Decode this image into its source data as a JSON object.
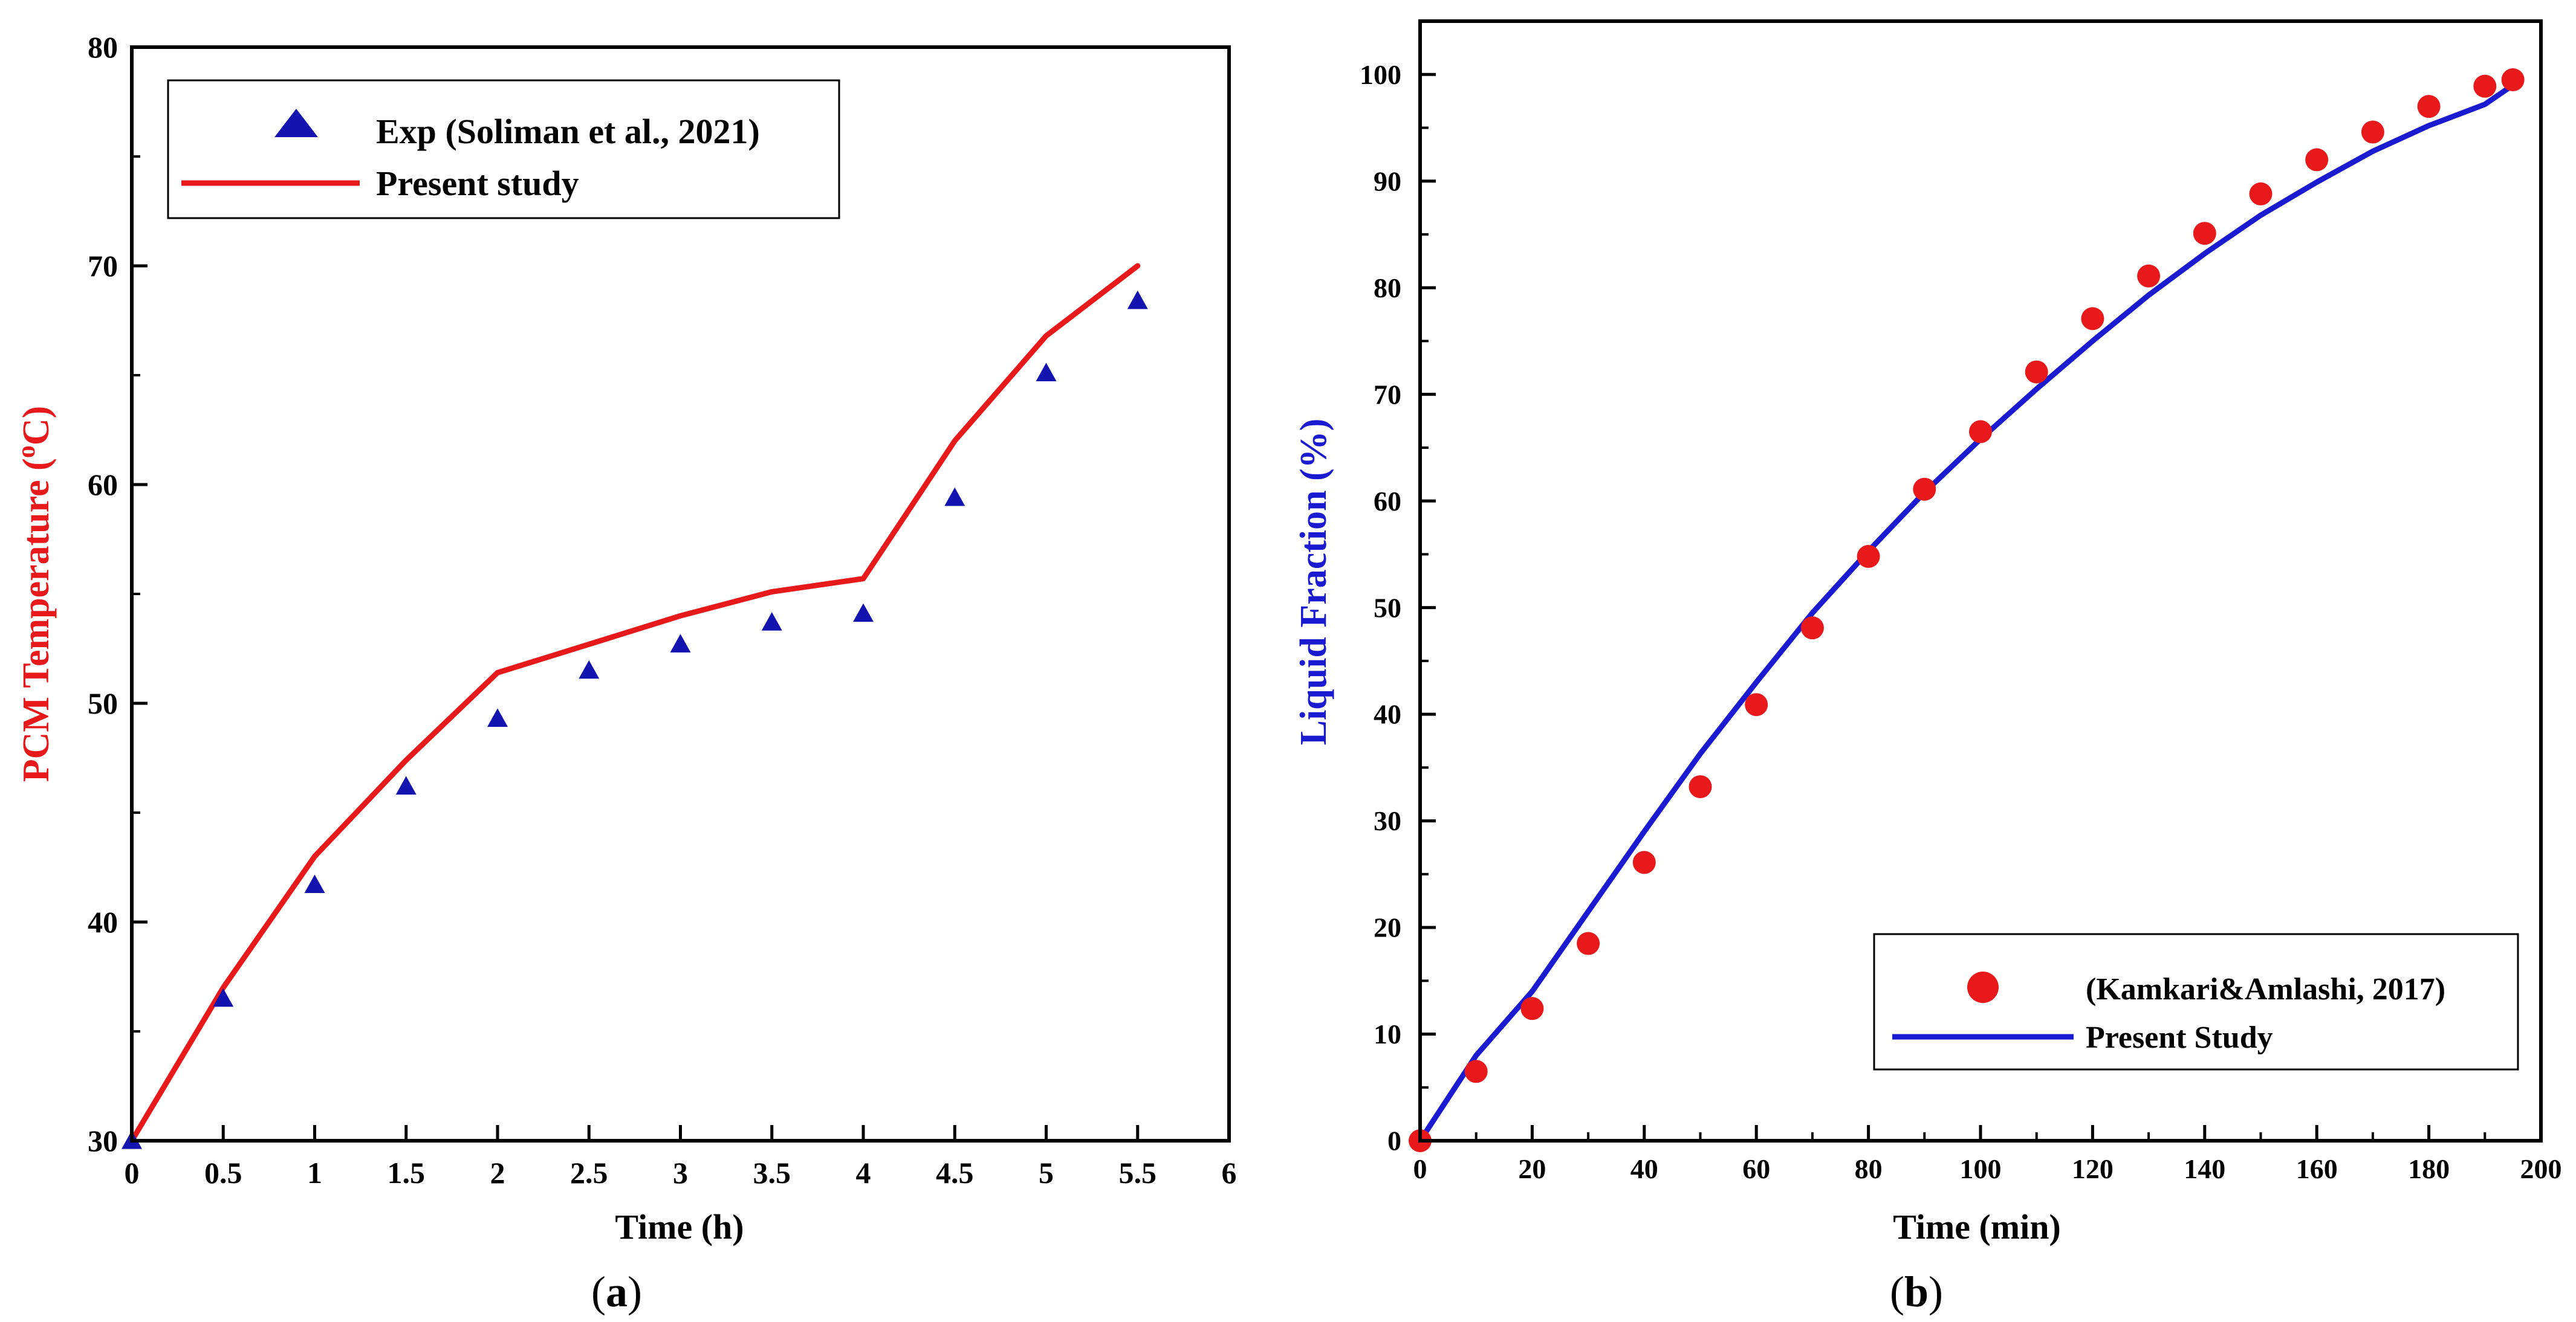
{
  "panels": [
    {
      "label_open": "(",
      "label_letter": "a",
      "label_close": ")",
      "chart_data": {
        "type": "line",
        "title": "",
        "xlabel": "Time (h)",
        "ylabel_main": "PCM Temperature  (",
        "ylabel_sup": "o",
        "ylabel_end": "C)",
        "xlim": [
          0,
          6
        ],
        "ylim": [
          30,
          80
        ],
        "xticks": [
          0,
          0.5,
          1,
          1.5,
          2,
          2.5,
          3,
          3.5,
          4,
          4.5,
          5,
          5.5,
          6
        ],
        "xtick_labels": [
          "0",
          "0.5",
          "1",
          "1.5",
          "2",
          "2.5",
          "3",
          "3.5",
          "4",
          "4.5",
          "5",
          "5.5",
          "6"
        ],
        "yticks": [
          30,
          40,
          50,
          60,
          70,
          80
        ],
        "ytick_labels": [
          "30",
          "40",
          "50",
          "60",
          "70",
          "80"
        ],
        "grid": false,
        "legend_position": "top-left",
        "ylabel_color": "#e8191b",
        "series": [
          {
            "name": "Exp (Soliman et al., 2021)",
            "kind": "scatter",
            "marker": "triangle",
            "color": "#1313b0",
            "x": [
              0,
              0.5,
              1,
              1.5,
              2,
              2.5,
              3,
              3.5,
              4,
              4.5,
              5,
              5.5
            ],
            "y": [
              30,
              36.5,
              41.7,
              46.2,
              49.3,
              51.5,
              52.7,
              53.7,
              54.1,
              59.4,
              65.1,
              68.4
            ]
          },
          {
            "name": "Present study",
            "kind": "line",
            "color": "#e8191b",
            "x": [
              0,
              0.5,
              1,
              1.5,
              2,
              2.5,
              3,
              3.5,
              4,
              4.5,
              5,
              5.5
            ],
            "y": [
              30,
              37,
              43,
              47.4,
              51.4,
              52.7,
              54,
              55.1,
              55.7,
              62,
              66.8,
              70
            ]
          }
        ]
      }
    },
    {
      "label_open": "(",
      "label_letter": "b",
      "label_close": ")",
      "chart_data": {
        "type": "line",
        "title": "",
        "xlabel": "Time (min)",
        "ylabel": "Liquid Fraction (%)",
        "xlim": [
          0,
          200
        ],
        "ylim": [
          0,
          105
        ],
        "xticks": [
          0,
          20,
          40,
          60,
          80,
          100,
          120,
          140,
          160,
          180,
          200
        ],
        "xtick_labels": [
          "0",
          "20",
          "40",
          "60",
          "80",
          "100",
          "120",
          "140",
          "160",
          "180",
          "200"
        ],
        "yticks": [
          0,
          10,
          20,
          30,
          40,
          50,
          60,
          70,
          80,
          90,
          100
        ],
        "ytick_labels": [
          "0",
          "10",
          "20",
          "30",
          "40",
          "50",
          "60",
          "70",
          "80",
          "90",
          "100"
        ],
        "grid": false,
        "legend_position": "bottom-right",
        "ylabel_color": "#1a1ad0",
        "series": [
          {
            "name": "(Kamkari&Amlashi, 2017)",
            "kind": "scatter",
            "marker": "circle",
            "color": "#e8191b",
            "x": [
              0,
              10,
              20,
              30,
              40,
              50,
              60,
              70,
              80,
              90,
              100,
              110,
              120,
              130,
              140,
              150,
              160,
              170,
              180,
              190,
              195
            ],
            "y": [
              0,
              6.5,
              12.4,
              18.5,
              26.1,
              33.2,
              40.9,
              48.1,
              54.8,
              61.1,
              66.5,
              72.1,
              77.1,
              81.1,
              85.1,
              88.8,
              92,
              94.6,
              97,
              98.9,
              99.5
            ]
          },
          {
            "name": "Present Study",
            "kind": "line",
            "color": "#1a1ad0",
            "x": [
              0,
              10,
              20,
              30,
              40,
              50,
              60,
              70,
              80,
              90,
              100,
              110,
              120,
              130,
              140,
              150,
              160,
              170,
              180,
              190,
              195
            ],
            "y": [
              0,
              8,
              14,
              21.5,
              29,
              36.3,
              43,
              49.5,
              55.3,
              60.8,
              65.8,
              70.5,
              75,
              79.3,
              83.2,
              86.8,
              89.9,
              92.8,
              95.2,
              97.2,
              99
            ]
          }
        ]
      }
    }
  ]
}
